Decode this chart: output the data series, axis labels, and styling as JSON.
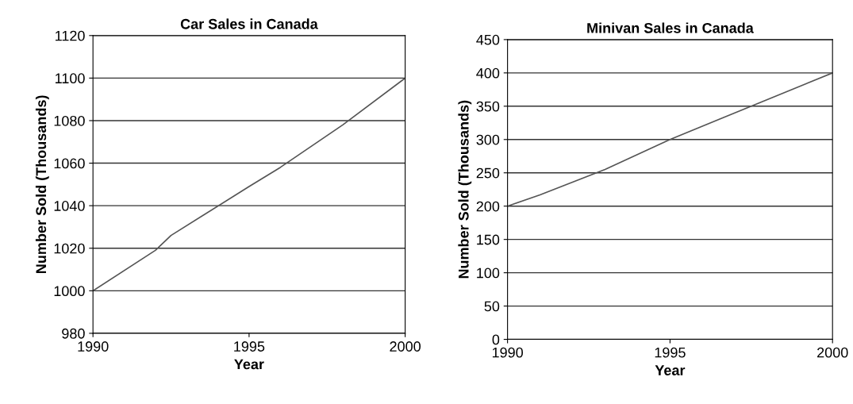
{
  "chart_data": [
    {
      "type": "line",
      "title": "Car Sales in Canada",
      "xlabel": "Year",
      "ylabel": "Number Sold (Thousands)",
      "x": [
        1990,
        1992,
        1992.5,
        1995,
        1996,
        1997,
        1998,
        2000
      ],
      "series": [
        {
          "color": "#555555",
          "values": [
            1000,
            1019,
            1026,
            1049,
            1058,
            1068,
            1078,
            1100
          ]
        }
      ],
      "xlim": [
        1990,
        2000
      ],
      "xticks": [
        1990,
        1995,
        2000
      ],
      "ylim": [
        980,
        1120
      ],
      "yticks": [
        980,
        1000,
        1020,
        1040,
        1060,
        1080,
        1100,
        1120
      ],
      "grid": "y"
    },
    {
      "type": "line",
      "title": "Minivan Sales in Canada",
      "xlabel": "Year",
      "ylabel": "Number Sold (Thousands)",
      "x": [
        1990,
        1991,
        1993,
        1995,
        1996.5,
        1997.5,
        2000
      ],
      "series": [
        {
          "color": "#555555",
          "values": [
            200,
            217,
            255,
            300,
            330,
            350,
            400
          ]
        }
      ],
      "xlim": [
        1990,
        2000
      ],
      "xticks": [
        1990,
        1995,
        2000
      ],
      "ylim": [
        0,
        450
      ],
      "yticks": [
        0,
        50,
        100,
        150,
        200,
        250,
        300,
        350,
        400,
        450
      ],
      "grid": "y"
    }
  ]
}
